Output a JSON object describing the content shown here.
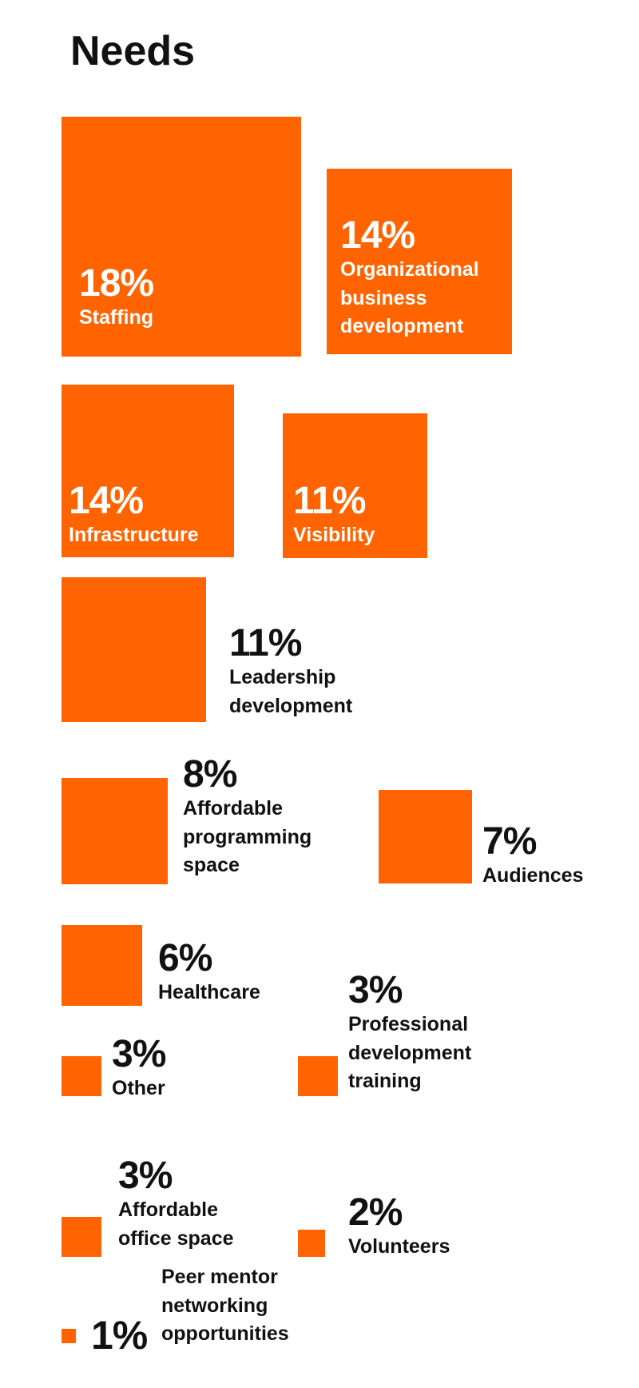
{
  "chart_data": {
    "type": "proportional-squares",
    "title": "Needs",
    "unit": "%",
    "color": "#ff6400",
    "items": [
      {
        "label": "Staffing",
        "value": 18,
        "pct_label": "18%"
      },
      {
        "label": "Organizational\nbusiness\ndevelopment",
        "value": 14,
        "pct_label": "14%"
      },
      {
        "label": "Infrastructure",
        "value": 14,
        "pct_label": "14%"
      },
      {
        "label": "Visibility",
        "value": 11,
        "pct_label": "11%"
      },
      {
        "label": "Leadership\ndevelopment",
        "value": 11,
        "pct_label": "11%"
      },
      {
        "label": "Affordable\nprogramming\nspace",
        "value": 8,
        "pct_label": "8%"
      },
      {
        "label": "Audiences",
        "value": 7,
        "pct_label": "7%"
      },
      {
        "label": "Healthcare",
        "value": 6,
        "pct_label": "6%"
      },
      {
        "label": "Other",
        "value": 3,
        "pct_label": "3%"
      },
      {
        "label": "Professional\ndevelopment\ntraining",
        "value": 3,
        "pct_label": "3%"
      },
      {
        "label": "Affordable\noffice space",
        "value": 3,
        "pct_label": "3%"
      },
      {
        "label": "Volunteers",
        "value": 2,
        "pct_label": "2%"
      },
      {
        "label": "Peer mentor\nnetworking\nopportunities",
        "value": 1,
        "pct_label": "1%"
      }
    ]
  }
}
